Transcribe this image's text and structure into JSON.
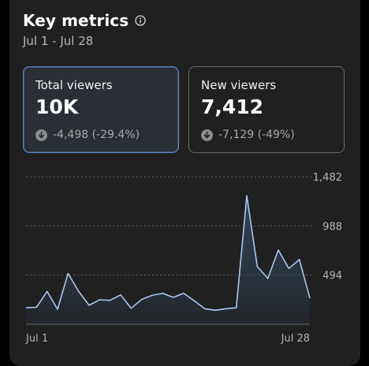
{
  "header": {
    "title": "Key metrics",
    "date_range": "Jul 1 - Jul 28"
  },
  "metrics": [
    {
      "label": "Total viewers",
      "value": "10K",
      "change": "-4,498 (-29.4%)",
      "selected": true
    },
    {
      "label": "New viewers",
      "value": "7,412",
      "change": "-7,129 (-49%)",
      "selected": false
    }
  ],
  "chart_data": {
    "type": "area",
    "x_labels": [
      "Jul 1",
      "Jul 28"
    ],
    "y_ticks": [
      {
        "value": 494,
        "label": "494"
      },
      {
        "value": 988,
        "label": "988"
      },
      {
        "value": 1482,
        "label": "1,482"
      }
    ],
    "ylim": [
      0,
      1482
    ],
    "grid": true,
    "values": [
      165,
      170,
      330,
      150,
      510,
      330,
      190,
      245,
      240,
      295,
      160,
      250,
      290,
      310,
      270,
      310,
      235,
      155,
      140,
      155,
      165,
      1290,
      580,
      460,
      745,
      560,
      650,
      260
    ],
    "colors": {
      "line": "#a7c7f0",
      "area_top": "#33475f",
      "grid": "#5c5c5c",
      "axis": "#6a6a6a",
      "tick_text": "#b5b5b5"
    }
  }
}
